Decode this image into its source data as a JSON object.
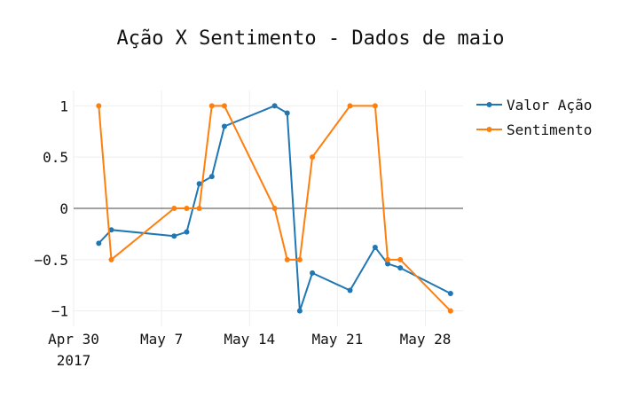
{
  "chart_data": {
    "type": "line",
    "title": "Ação X Sentimento - Dados de maio",
    "xlabel": "",
    "ylabel": "",
    "x_axis_type": "date",
    "x_ticks": [
      {
        "date": "2017-04-30",
        "label": "Apr 30",
        "sublabel": "2017"
      },
      {
        "date": "2017-05-07",
        "label": "May 7",
        "sublabel": ""
      },
      {
        "date": "2017-05-14",
        "label": "May 14",
        "sublabel": ""
      },
      {
        "date": "2017-05-21",
        "label": "May 21",
        "sublabel": ""
      },
      {
        "date": "2017-05-28",
        "label": "May 28",
        "sublabel": ""
      }
    ],
    "y_ticks": [
      {
        "value": 1,
        "label": "1"
      },
      {
        "value": 0.5,
        "label": "0.5"
      },
      {
        "value": 0,
        "label": "0"
      },
      {
        "value": -0.5,
        "label": "−0.5"
      },
      {
        "value": -1,
        "label": "−1"
      }
    ],
    "xlim": [
      "2017-04-30",
      "2017-05-31"
    ],
    "ylim": [
      -1.15,
      1.15
    ],
    "grid": true,
    "legend_position": "top-right",
    "series": [
      {
        "name": "Valor Ação",
        "color": "#1f77b4",
        "points": [
          {
            "x": "2017-05-02",
            "y": -0.34
          },
          {
            "x": "2017-05-03",
            "y": -0.21
          },
          {
            "x": "2017-05-08",
            "y": -0.27
          },
          {
            "x": "2017-05-09",
            "y": -0.23
          },
          {
            "x": "2017-05-10",
            "y": 0.24
          },
          {
            "x": "2017-05-11",
            "y": 0.31
          },
          {
            "x": "2017-05-12",
            "y": 0.8
          },
          {
            "x": "2017-05-16",
            "y": 1.0
          },
          {
            "x": "2017-05-17",
            "y": 0.93
          },
          {
            "x": "2017-05-18",
            "y": -1.0
          },
          {
            "x": "2017-05-19",
            "y": -0.63
          },
          {
            "x": "2017-05-22",
            "y": -0.8
          },
          {
            "x": "2017-05-24",
            "y": -0.38
          },
          {
            "x": "2017-05-25",
            "y": -0.54
          },
          {
            "x": "2017-05-26",
            "y": -0.58
          },
          {
            "x": "2017-05-30",
            "y": -0.83
          }
        ]
      },
      {
        "name": "Sentimento",
        "color": "#ff7f0e",
        "points": [
          {
            "x": "2017-05-02",
            "y": 1.0
          },
          {
            "x": "2017-05-03",
            "y": -0.5
          },
          {
            "x": "2017-05-08",
            "y": 0.0
          },
          {
            "x": "2017-05-09",
            "y": 0.0
          },
          {
            "x": "2017-05-10",
            "y": 0.0
          },
          {
            "x": "2017-05-11",
            "y": 1.0
          },
          {
            "x": "2017-05-12",
            "y": 1.0
          },
          {
            "x": "2017-05-16",
            "y": 0.0
          },
          {
            "x": "2017-05-17",
            "y": -0.5
          },
          {
            "x": "2017-05-18",
            "y": -0.5
          },
          {
            "x": "2017-05-19",
            "y": 0.5
          },
          {
            "x": "2017-05-22",
            "y": 1.0
          },
          {
            "x": "2017-05-24",
            "y": 1.0
          },
          {
            "x": "2017-05-25",
            "y": -0.5
          },
          {
            "x": "2017-05-26",
            "y": -0.5
          },
          {
            "x": "2017-05-30",
            "y": -1.0
          }
        ]
      }
    ]
  }
}
